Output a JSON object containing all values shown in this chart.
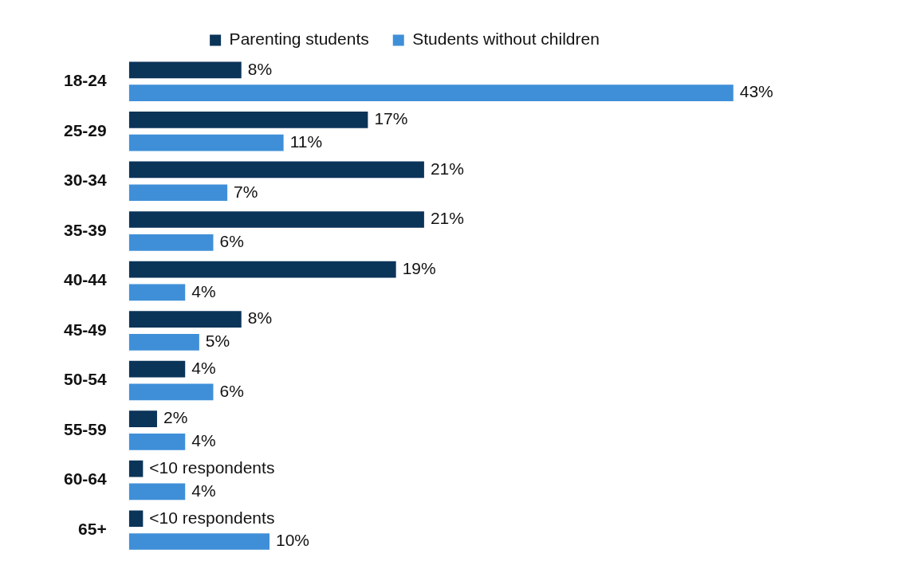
{
  "chart_data": {
    "type": "bar",
    "orientation": "horizontal",
    "legend": "top",
    "categories": [
      "18-24",
      "25-29",
      "30-34",
      "35-39",
      "40-44",
      "45-49",
      "50-54",
      "55-59",
      "60-64",
      "65+"
    ],
    "series": [
      {
        "name": "Parenting students",
        "color": "#0b3459",
        "values": [
          8,
          17,
          21,
          21,
          19,
          8,
          4,
          2,
          1,
          1
        ],
        "value_labels": [
          "8%",
          "17%",
          "21%",
          "21%",
          "19%",
          "8%",
          "4%",
          "2%",
          "<10 respondents",
          "<10 respondents"
        ]
      },
      {
        "name": "Students without children",
        "color": "#3f8fd8",
        "values": [
          43,
          11,
          7,
          6,
          4,
          5,
          6,
          4,
          4,
          10
        ],
        "value_labels": [
          "43%",
          "11%",
          "7%",
          "6%",
          "4%",
          "5%",
          "6%",
          "4%",
          "4%",
          "10%"
        ]
      }
    ]
  }
}
